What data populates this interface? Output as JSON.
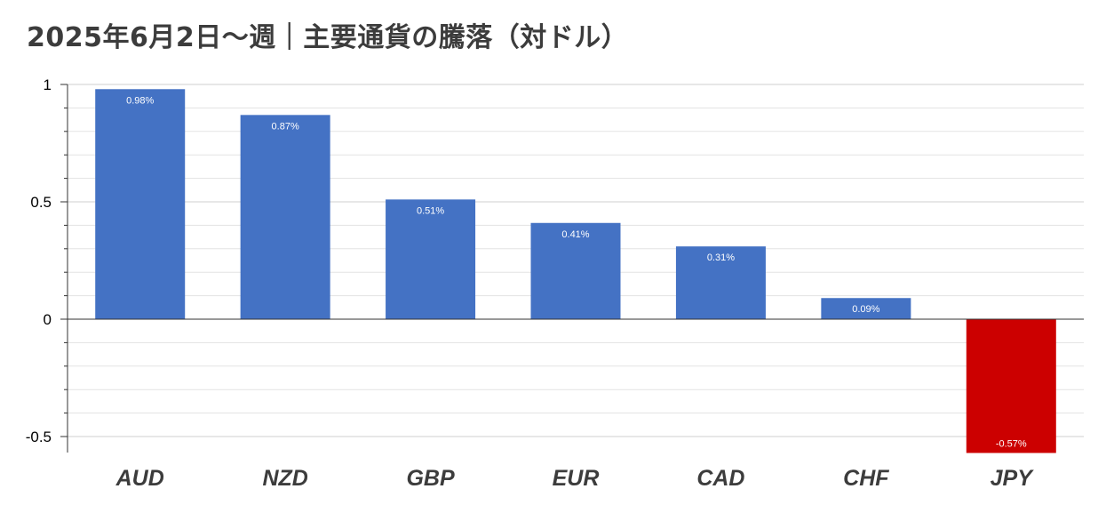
{
  "chart_data": {
    "type": "bar",
    "title": "2025年6月2日〜週｜主要通貨の騰落（対ドル）",
    "xlabel": "",
    "ylabel": "",
    "categories": [
      "AUD",
      "NZD",
      "GBP",
      "EUR",
      "CAD",
      "CHF",
      "JPY"
    ],
    "values": [
      0.98,
      0.87,
      0.51,
      0.41,
      0.31,
      0.09,
      -0.57
    ],
    "value_labels": [
      "0.98%",
      "0.87%",
      "0.51%",
      "0.41%",
      "0.31%",
      "0.09%",
      "-0.57%"
    ],
    "ylim": [
      -0.57,
      1.0
    ],
    "yticks": [
      1,
      0.5,
      0,
      -0.5
    ],
    "ytick_labels": [
      "1",
      "0.5",
      "0",
      "-0.5"
    ],
    "grid": true,
    "legend": "none",
    "colors": {
      "positive": "#4472C4",
      "negative": "#CC0000",
      "grid": "#e3e3e3",
      "axis": "#333333",
      "tick_text": "#000000",
      "category_text": "#3c3c3c",
      "label_text": "#ffffff"
    }
  }
}
